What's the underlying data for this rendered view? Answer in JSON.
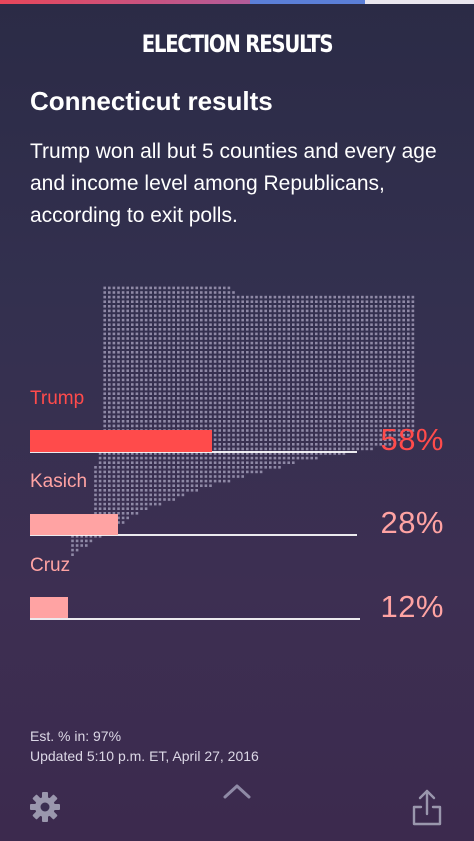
{
  "header": {
    "title": "ELECTION RESULTS"
  },
  "page": {
    "state_title": "Connecticut results",
    "summary": "Trump won all but 5 counties and every age and income level among Republicans, according to exit polls."
  },
  "candidates": [
    {
      "name": "Trump",
      "percent_label": "58%",
      "share": 0.58,
      "color": "#ff4b4b"
    },
    {
      "name": "Kasich",
      "percent_label": "28%",
      "share": 0.28,
      "color": "#ffa3a3"
    },
    {
      "name": "Cruz",
      "percent_label": "12%",
      "share": 0.12,
      "color": "#ffa3a3"
    }
  ],
  "footer": {
    "est_in": "Est. % in: 97%",
    "updated": "Updated 5:10 p.m. ET, April 27, 2016"
  },
  "icons": {
    "settings": "gear-icon",
    "expand": "chevron-up-icon",
    "share": "share-icon"
  },
  "colors": {
    "accent_trump": "#ff4b4b",
    "accent_other": "#ffa3a3",
    "map_dots": "#8f89a6"
  }
}
